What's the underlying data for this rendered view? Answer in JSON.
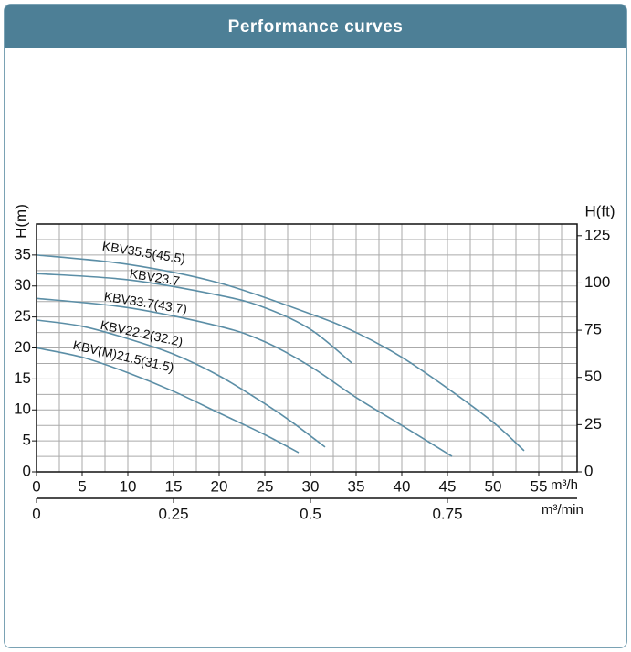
{
  "chart_data": {
    "type": "line",
    "title": "Performance curves",
    "y_label": "H(m)",
    "y2_label": "H(ft)",
    "x_label": "m³/h",
    "x2_label": "m³/min",
    "xlim": [
      0,
      59.2
    ],
    "xticks": [
      0,
      5,
      10,
      15,
      20,
      25,
      30,
      35,
      40,
      45,
      50,
      55
    ],
    "x2lim": [
      0,
      0.9867
    ],
    "x2ticks": [
      0,
      0.25,
      0.5,
      0.75
    ],
    "ylim": [
      0,
      40
    ],
    "yticks": [
      0,
      5,
      10,
      15,
      20,
      25,
      30,
      35
    ],
    "y2lim": [
      0,
      131.2
    ],
    "y2ticks": [
      0,
      25,
      50,
      75,
      100,
      125
    ],
    "grid": true,
    "series": [
      {
        "name": "KBV35.5(45.5)",
        "color": "#5b8ea6",
        "x": [
          0,
          10,
          20,
          30,
          35,
          40,
          45,
          50,
          53.4
        ],
        "values": [
          35,
          33.5,
          30.5,
          25.5,
          22.5,
          18.5,
          13.5,
          8,
          3.4
        ]
      },
      {
        "name": "KBV23.7",
        "color": "#5b8ea6",
        "x": [
          0,
          10,
          20,
          25,
          30,
          34.5
        ],
        "values": [
          32,
          31,
          28.5,
          26.5,
          23,
          17.6
        ]
      },
      {
        "name": "KBV33.7(43.7)",
        "color": "#5b8ea6",
        "x": [
          0,
          10,
          20,
          25,
          30,
          35,
          40,
          45.5
        ],
        "values": [
          28,
          26.5,
          23.5,
          21,
          17,
          12,
          7.5,
          2.5
        ]
      },
      {
        "name": "KBV22.2(32.2)",
        "color": "#5b8ea6",
        "x": [
          0,
          5,
          10,
          15,
          20,
          25,
          28,
          31.6
        ],
        "values": [
          24.5,
          23.5,
          21.5,
          19,
          15.5,
          11,
          8,
          4
        ]
      },
      {
        "name": "KBV(M)21.5(31.5)",
        "color": "#5b8ea6",
        "x": [
          0,
          5,
          10,
          15,
          20,
          25,
          28.7
        ],
        "values": [
          20,
          18.5,
          16,
          13,
          9.5,
          6,
          3.1
        ]
      }
    ]
  }
}
